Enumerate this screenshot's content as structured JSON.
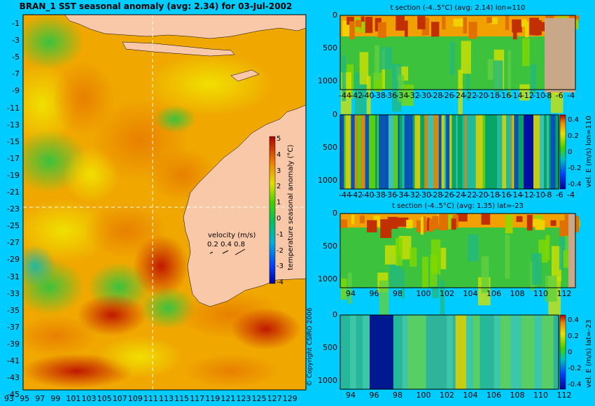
{
  "main_title": "BRAN_1 SST seasonal anomaly (avg: 2.34) for 03-Jul-2002",
  "copyright": "© Copyright CSIRO 2006",
  "colors": {
    "background": "#00ccff",
    "land": "#f9c8a8",
    "bathymetry": "#c8a888",
    "section_line": "#ffffff"
  },
  "map": {
    "lat_ticks": [
      "-1",
      "-3",
      "-5",
      "-7",
      "-9",
      "-11",
      "-13",
      "-15",
      "-17",
      "-19",
      "-21",
      "-23",
      "-25",
      "-27",
      "-29",
      "-31",
      "-33",
      "-35",
      "-37",
      "-39",
      "-41",
      "-43",
      "-45"
    ],
    "lon_ticks": [
      "93",
      "95",
      "97",
      "99",
      "101",
      "103",
      "105",
      "107",
      "109",
      "111",
      "113",
      "115",
      "117",
      "119",
      "121",
      "123",
      "125",
      "127",
      "129"
    ],
    "colorbar_ticks": [
      "5",
      "4",
      "3",
      "2",
      "1",
      "0",
      "-1",
      "-2",
      "-3",
      "-4"
    ],
    "colorbar_label": "temperature seasonal anomaly (°C)",
    "velocity_label": "velocity (m/s)",
    "velocity_ticks": "0.2 0.4 0.8",
    "section_lon": 110,
    "section_lat": -23
  },
  "panels": [
    {
      "title": "t section (-4..5°C) (avg: 2.14) lon=110",
      "x_ticks": [
        "-44",
        "-42",
        "-40",
        "-38",
        "-36",
        "-34",
        "-32",
        "-30",
        "-28",
        "-26",
        "-24",
        "-22",
        "-20",
        "-18",
        "-16",
        "-14",
        "-12",
        "-10",
        "-8",
        "-6",
        "-4"
      ],
      "y_ticks": [
        "0",
        "500",
        "1000"
      ]
    },
    {
      "title": "",
      "x_ticks": [
        "-44",
        "-42",
        "-40",
        "-38",
        "-36",
        "-34",
        "-32",
        "-30",
        "-28",
        "-26",
        "-24",
        "-22",
        "-20",
        "-18",
        "-16",
        "-14",
        "-12",
        "-10",
        "-8",
        "-6",
        "-4"
      ],
      "y_ticks": [
        "0",
        "500",
        "1000"
      ],
      "cbar_ticks": [
        "0.4",
        "0.2",
        "0",
        "-0.2",
        "-0.4"
      ],
      "cbar_label": "vel. E (m/s) lon=110"
    },
    {
      "title": "t section (-4..5°C) (avg: 1.35) lat=-23",
      "x_ticks": [
        "94",
        "96",
        "98",
        "100",
        "102",
        "104",
        "106",
        "108",
        "110",
        "112"
      ],
      "y_ticks": [
        "0",
        "500",
        "1000"
      ]
    },
    {
      "title": "",
      "x_ticks": [
        "94",
        "96",
        "98",
        "100",
        "102",
        "104",
        "106",
        "108",
        "110",
        "112"
      ],
      "y_ticks": [
        "0",
        "500",
        "1000"
      ],
      "cbar_ticks": [
        "0.4",
        "0.2",
        "0",
        "-0.2",
        "-0.4"
      ],
      "cbar_label": "vel. E (m/s) lat=-23"
    }
  ],
  "chart_data": [
    {
      "type": "heatmap",
      "title": "BRAN_1 SST seasonal anomaly (avg: 2.34) for 03-Jul-2002",
      "x_range": [
        93,
        130
      ],
      "y_range": [
        -45,
        0
      ],
      "value_range": [
        -4,
        5
      ],
      "colorbar_label": "temperature seasonal anomaly (°C)"
    },
    {
      "type": "heatmap",
      "title": "t section (-4..5°C) (avg: 2.14) lon=110",
      "x_range": [
        -45,
        -3
      ],
      "y_range": [
        1050,
        0
      ],
      "value_range": [
        -4,
        5
      ]
    },
    {
      "type": "heatmap",
      "title": "",
      "x_range": [
        -45,
        -3
      ],
      "y_range": [
        1050,
        0
      ],
      "value_range": [
        -0.4,
        0.4
      ],
      "colorbar_label": "vel. E (m/s) lon=110"
    },
    {
      "type": "heatmap",
      "title": "t section (-4..5°C) (avg: 1.35) lat=-23",
      "x_range": [
        93,
        114
      ],
      "y_range": [
        1050,
        0
      ],
      "value_range": [
        -4,
        5
      ]
    },
    {
      "type": "heatmap",
      "title": "",
      "x_range": [
        93,
        114
      ],
      "y_range": [
        1050,
        0
      ],
      "value_range": [
        -0.4,
        0.4
      ],
      "colorbar_label": "vel. E (m/s) lat=-23"
    }
  ]
}
